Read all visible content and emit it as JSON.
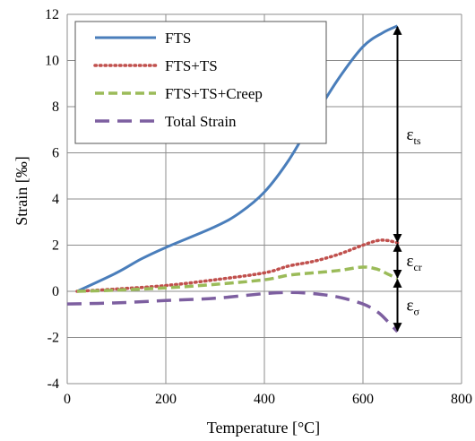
{
  "chart_data": {
    "type": "line",
    "xlabel": "Temperature [°C]",
    "ylabel": "Strain [‰]",
    "xlim": [
      0,
      800
    ],
    "ylim": [
      -4,
      12
    ],
    "x_ticks": [
      0,
      200,
      400,
      600,
      800
    ],
    "y_ticks": [
      -4,
      -2,
      0,
      2,
      4,
      6,
      8,
      10,
      12
    ],
    "x_tick_labels": [
      "0",
      "200",
      "400",
      "600",
      "800"
    ],
    "y_tick_labels": [
      "-4",
      "-2",
      "0",
      "2",
      "4",
      "6",
      "8",
      "10",
      "12"
    ],
    "grid": true,
    "legend_position": "top-left",
    "series": [
      {
        "name": "FTS",
        "color": "#4a7ebb",
        "style": "solid",
        "x": [
          20,
          100,
          150,
          200,
          300,
          350,
          400,
          450,
          500,
          550,
          600,
          640,
          670
        ],
        "y": [
          0,
          0.8,
          1.4,
          1.9,
          2.8,
          3.4,
          4.3,
          5.7,
          7.5,
          9.2,
          10.6,
          11.2,
          11.5
        ]
      },
      {
        "name": "FTS+TS",
        "color": "#c0504d",
        "style": "dotted",
        "x": [
          20,
          100,
          200,
          300,
          400,
          450,
          500,
          550,
          600,
          630,
          650,
          670
        ],
        "y": [
          0,
          0.1,
          0.25,
          0.5,
          0.8,
          1.1,
          1.3,
          1.6,
          2.0,
          2.2,
          2.2,
          2.1
        ]
      },
      {
        "name": "FTS+TS+Creep",
        "color": "#9bbb59",
        "style": "dashed",
        "x": [
          20,
          100,
          200,
          300,
          400,
          450,
          500,
          550,
          600,
          630,
          650,
          670
        ],
        "y": [
          0,
          0.05,
          0.15,
          0.3,
          0.5,
          0.7,
          0.8,
          0.9,
          1.05,
          0.95,
          0.75,
          0.55
        ]
      },
      {
        "name": "Total Strain",
        "color": "#7d5fa0",
        "style": "long-dash",
        "x": [
          0,
          100,
          200,
          300,
          400,
          450,
          500,
          550,
          600,
          630,
          650,
          670
        ],
        "y": [
          -0.55,
          -0.5,
          -0.4,
          -0.3,
          -0.1,
          -0.05,
          -0.1,
          -0.25,
          -0.55,
          -0.9,
          -1.3,
          -1.75
        ]
      }
    ],
    "annotations": [
      {
        "base": "ε",
        "sub": "ts",
        "x": 670,
        "y_from": 2.1,
        "y_to": 11.5
      },
      {
        "base": "ε",
        "sub": "cr",
        "x": 670,
        "y_from": 0.55,
        "y_to": 2.1
      },
      {
        "base": "ε",
        "sub": "σ",
        "x": 670,
        "y_from": -1.75,
        "y_to": 0.55
      }
    ]
  }
}
